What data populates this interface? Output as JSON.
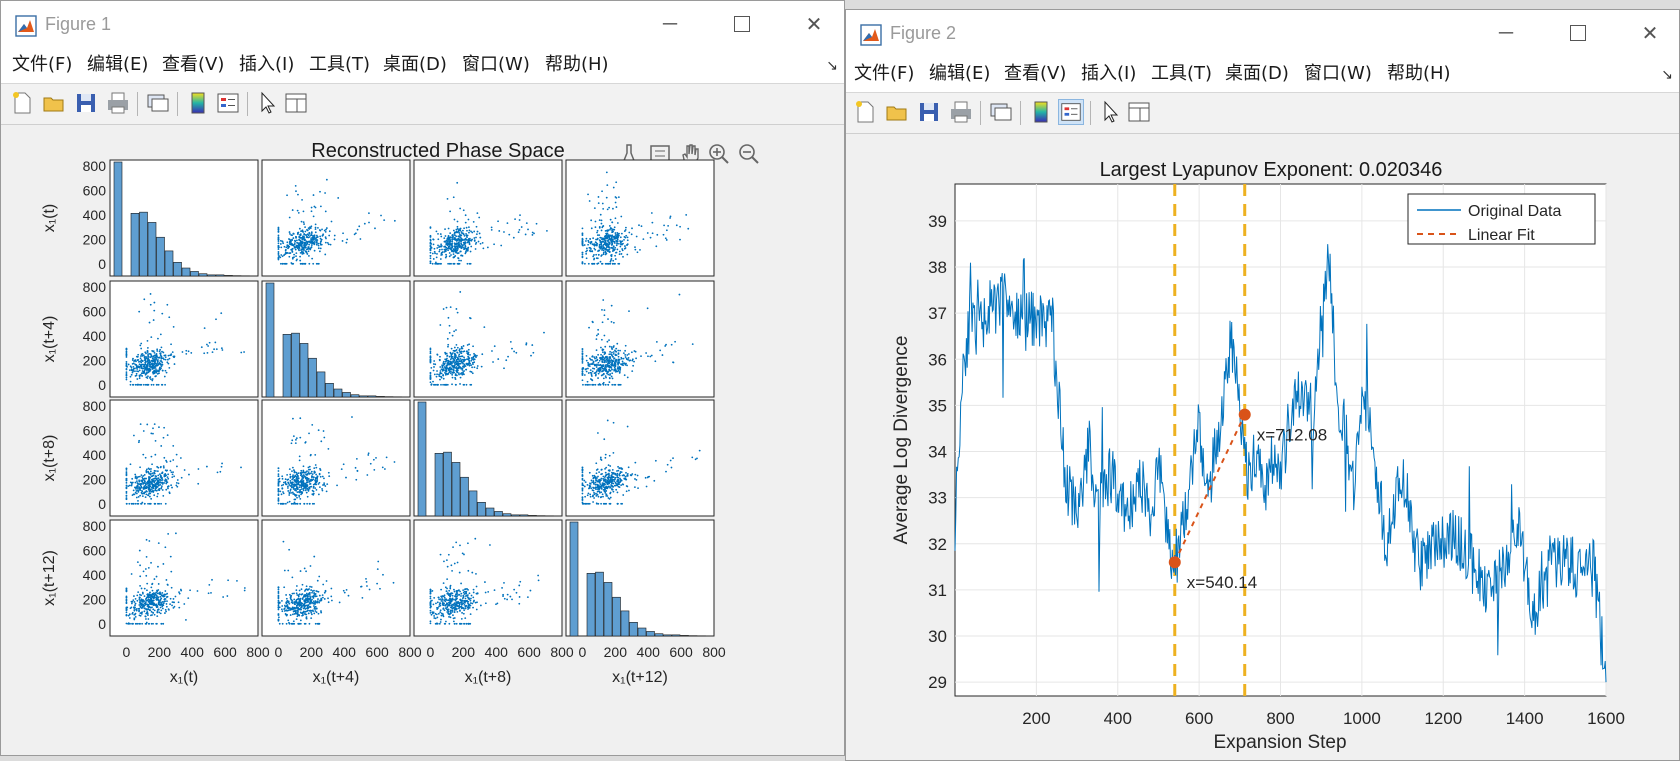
{
  "figure1": {
    "title": "Figure 1",
    "menus": [
      "文件(F)",
      "编辑(E)",
      "查看(V)",
      "插入(I)",
      "工具(T)",
      "桌面(D)",
      "窗口(W)",
      "帮助(H)"
    ],
    "plot_title": "Reconstructed Phase Space",
    "var_labels": [
      "x₁(t)",
      "x₁(t+4)",
      "x₁(t+8)",
      "x₁(t+12)"
    ],
    "y_ticks": [
      "0",
      "200",
      "400",
      "600",
      "800"
    ],
    "x_ticks": [
      "0",
      "200",
      "400",
      "600",
      "800"
    ]
  },
  "figure2": {
    "title": "Figure 2",
    "menus": [
      "文件(F)",
      "编辑(E)",
      "查看(V)",
      "插入(I)",
      "工具(T)",
      "桌面(D)",
      "窗口(W)",
      "帮助(H)"
    ],
    "plot_title": "Largest Lyapunov Exponent: 0.020346",
    "xlabel": "Expansion Step",
    "ylabel": "Average Log Divergence",
    "legend": [
      "Original Data",
      "Linear Fit"
    ],
    "annotations": [
      "x=540.14",
      "x=712.08"
    ]
  },
  "colors": {
    "series": "#0072bd",
    "fit": "#d95319",
    "vline": "#edb120",
    "bar": "#5f9ed1"
  },
  "chart_data": [
    {
      "type": "scatter",
      "title": "Reconstructed Phase Space",
      "variables": [
        "x₁(t)",
        "x₁(t+4)",
        "x₁(t+8)",
        "x₁(t+12)"
      ],
      "xlim": [
        -100,
        800
      ],
      "ylim": [
        -100,
        850
      ],
      "diagonal": "histogram",
      "histogram_bins": [
        0,
        50,
        100,
        150,
        200,
        250,
        300,
        350,
        400,
        450,
        500,
        550,
        600,
        650,
        700,
        750
      ],
      "histogram_relative_heights": [
        1.0,
        0.0,
        0.55,
        0.56,
        0.47,
        0.34,
        0.22,
        0.12,
        0.07,
        0.04,
        0.02,
        0.01,
        0.01,
        0.005,
        0.003,
        0.002
      ],
      "cloud_center": [
        150,
        170
      ],
      "grid": false
    },
    {
      "type": "line",
      "title": "Largest Lyapunov Exponent: 0.020346",
      "xlabel": "Expansion Step",
      "ylabel": "Average Log Divergence",
      "xlim": [
        0,
        1600
      ],
      "ylim": [
        28.7,
        39.8
      ],
      "x_ticks": [
        200,
        400,
        600,
        800,
        1000,
        1200,
        1400,
        1600
      ],
      "y_ticks": [
        29,
        30,
        31,
        32,
        33,
        34,
        35,
        36,
        37,
        38,
        39
      ],
      "series": [
        {
          "name": "Original Data",
          "x": [
            0,
            20,
            40,
            60,
            80,
            100,
            120,
            150,
            180,
            210,
            240,
            270,
            300,
            330,
            350,
            380,
            400,
            420,
            440,
            460,
            480,
            500,
            520,
            540,
            560,
            580,
            600,
            620,
            650,
            680,
            700,
            720,
            740,
            760,
            780,
            800,
            820,
            850,
            880,
            900,
            920,
            940,
            960,
            980,
            1000,
            1030,
            1060,
            1100,
            1140,
            1180,
            1220,
            1260,
            1300,
            1340,
            1380,
            1420,
            1460,
            1500,
            1540,
            1570,
            1600
          ],
          "y": [
            32.5,
            36.0,
            36.9,
            36.6,
            37.1,
            37.0,
            37.5,
            36.9,
            36.8,
            36.9,
            36.7,
            33.5,
            32.5,
            34.2,
            32.8,
            33.5,
            33.2,
            32.6,
            33.0,
            33.3,
            32.5,
            33.8,
            32.3,
            31.5,
            32.5,
            33.5,
            34.5,
            33.0,
            34.5,
            36.5,
            35.0,
            33.5,
            34.0,
            33.2,
            33.8,
            33.5,
            34.5,
            35.3,
            34.8,
            37.0,
            38.2,
            35.0,
            34.5,
            33.0,
            35.5,
            34.0,
            32.0,
            33.5,
            31.5,
            32.0,
            32.2,
            31.8,
            31.0,
            31.3,
            32.5,
            30.5,
            31.5,
            31.8,
            31.2,
            31.5,
            29.0
          ]
        },
        {
          "name": "Linear Fit",
          "x": [
            540.14,
            712.08
          ],
          "y": [
            31.6,
            34.8
          ]
        }
      ],
      "markers": [
        {
          "x": 540.14,
          "y": 31.6
        },
        {
          "x": 712.08,
          "y": 34.8
        }
      ],
      "vlines": [
        540.14,
        712.08
      ],
      "legend": "top-right",
      "grid": true
    }
  ]
}
